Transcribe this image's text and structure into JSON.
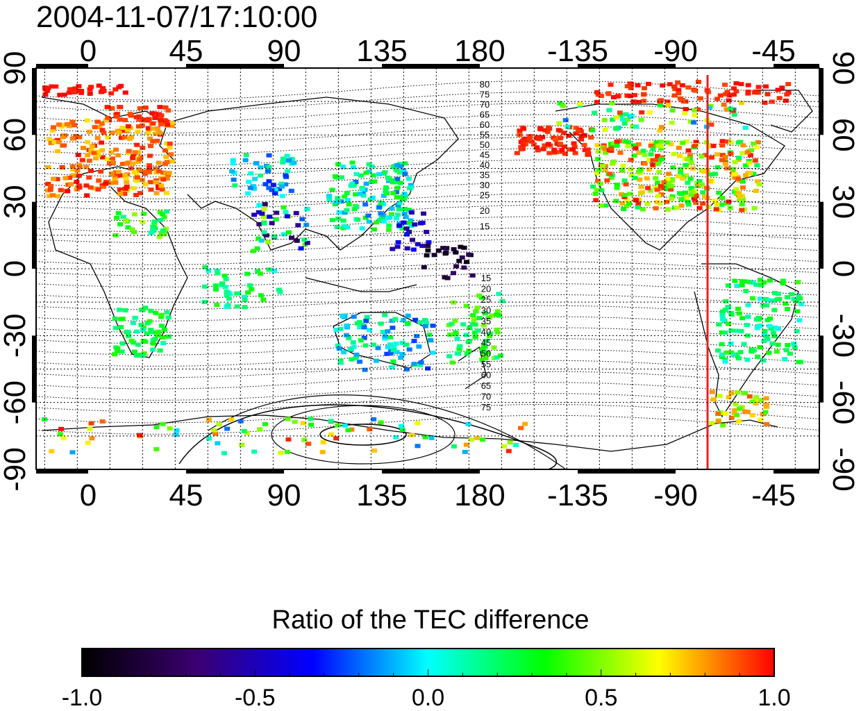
{
  "title": "2004-11-07/17:10:00",
  "map": {
    "lon_tick_labels": [
      "0",
      "45",
      "90",
      "135",
      "180",
      "-135",
      "-90",
      "-45"
    ],
    "lat_tick_labels": [
      "90",
      "60",
      "30",
      "0",
      "-30",
      "-60",
      "-90"
    ],
    "north_contour_labels": [
      "80",
      "75",
      "70",
      "65",
      "60",
      "55",
      "50",
      "45",
      "40",
      "35",
      "30",
      "25",
      "20",
      "15"
    ],
    "south_contour_labels": [
      "15",
      "20",
      "25",
      "30",
      "35",
      "40",
      "45",
      "50",
      "55",
      "60",
      "65",
      "70",
      "75"
    ],
    "terminator_color": "#e8201a",
    "grid": "dotted"
  },
  "colorbar": {
    "title": "Ratio of the TEC difference",
    "tick_labels": [
      "-1.0",
      "-0.5",
      "0.0",
      "0.5",
      "1.0"
    ],
    "stops": [
      "#000000",
      "#3a0070",
      "#0000ff",
      "#00ffff",
      "#00ff00",
      "#ffff00",
      "#ff0000"
    ]
  }
}
